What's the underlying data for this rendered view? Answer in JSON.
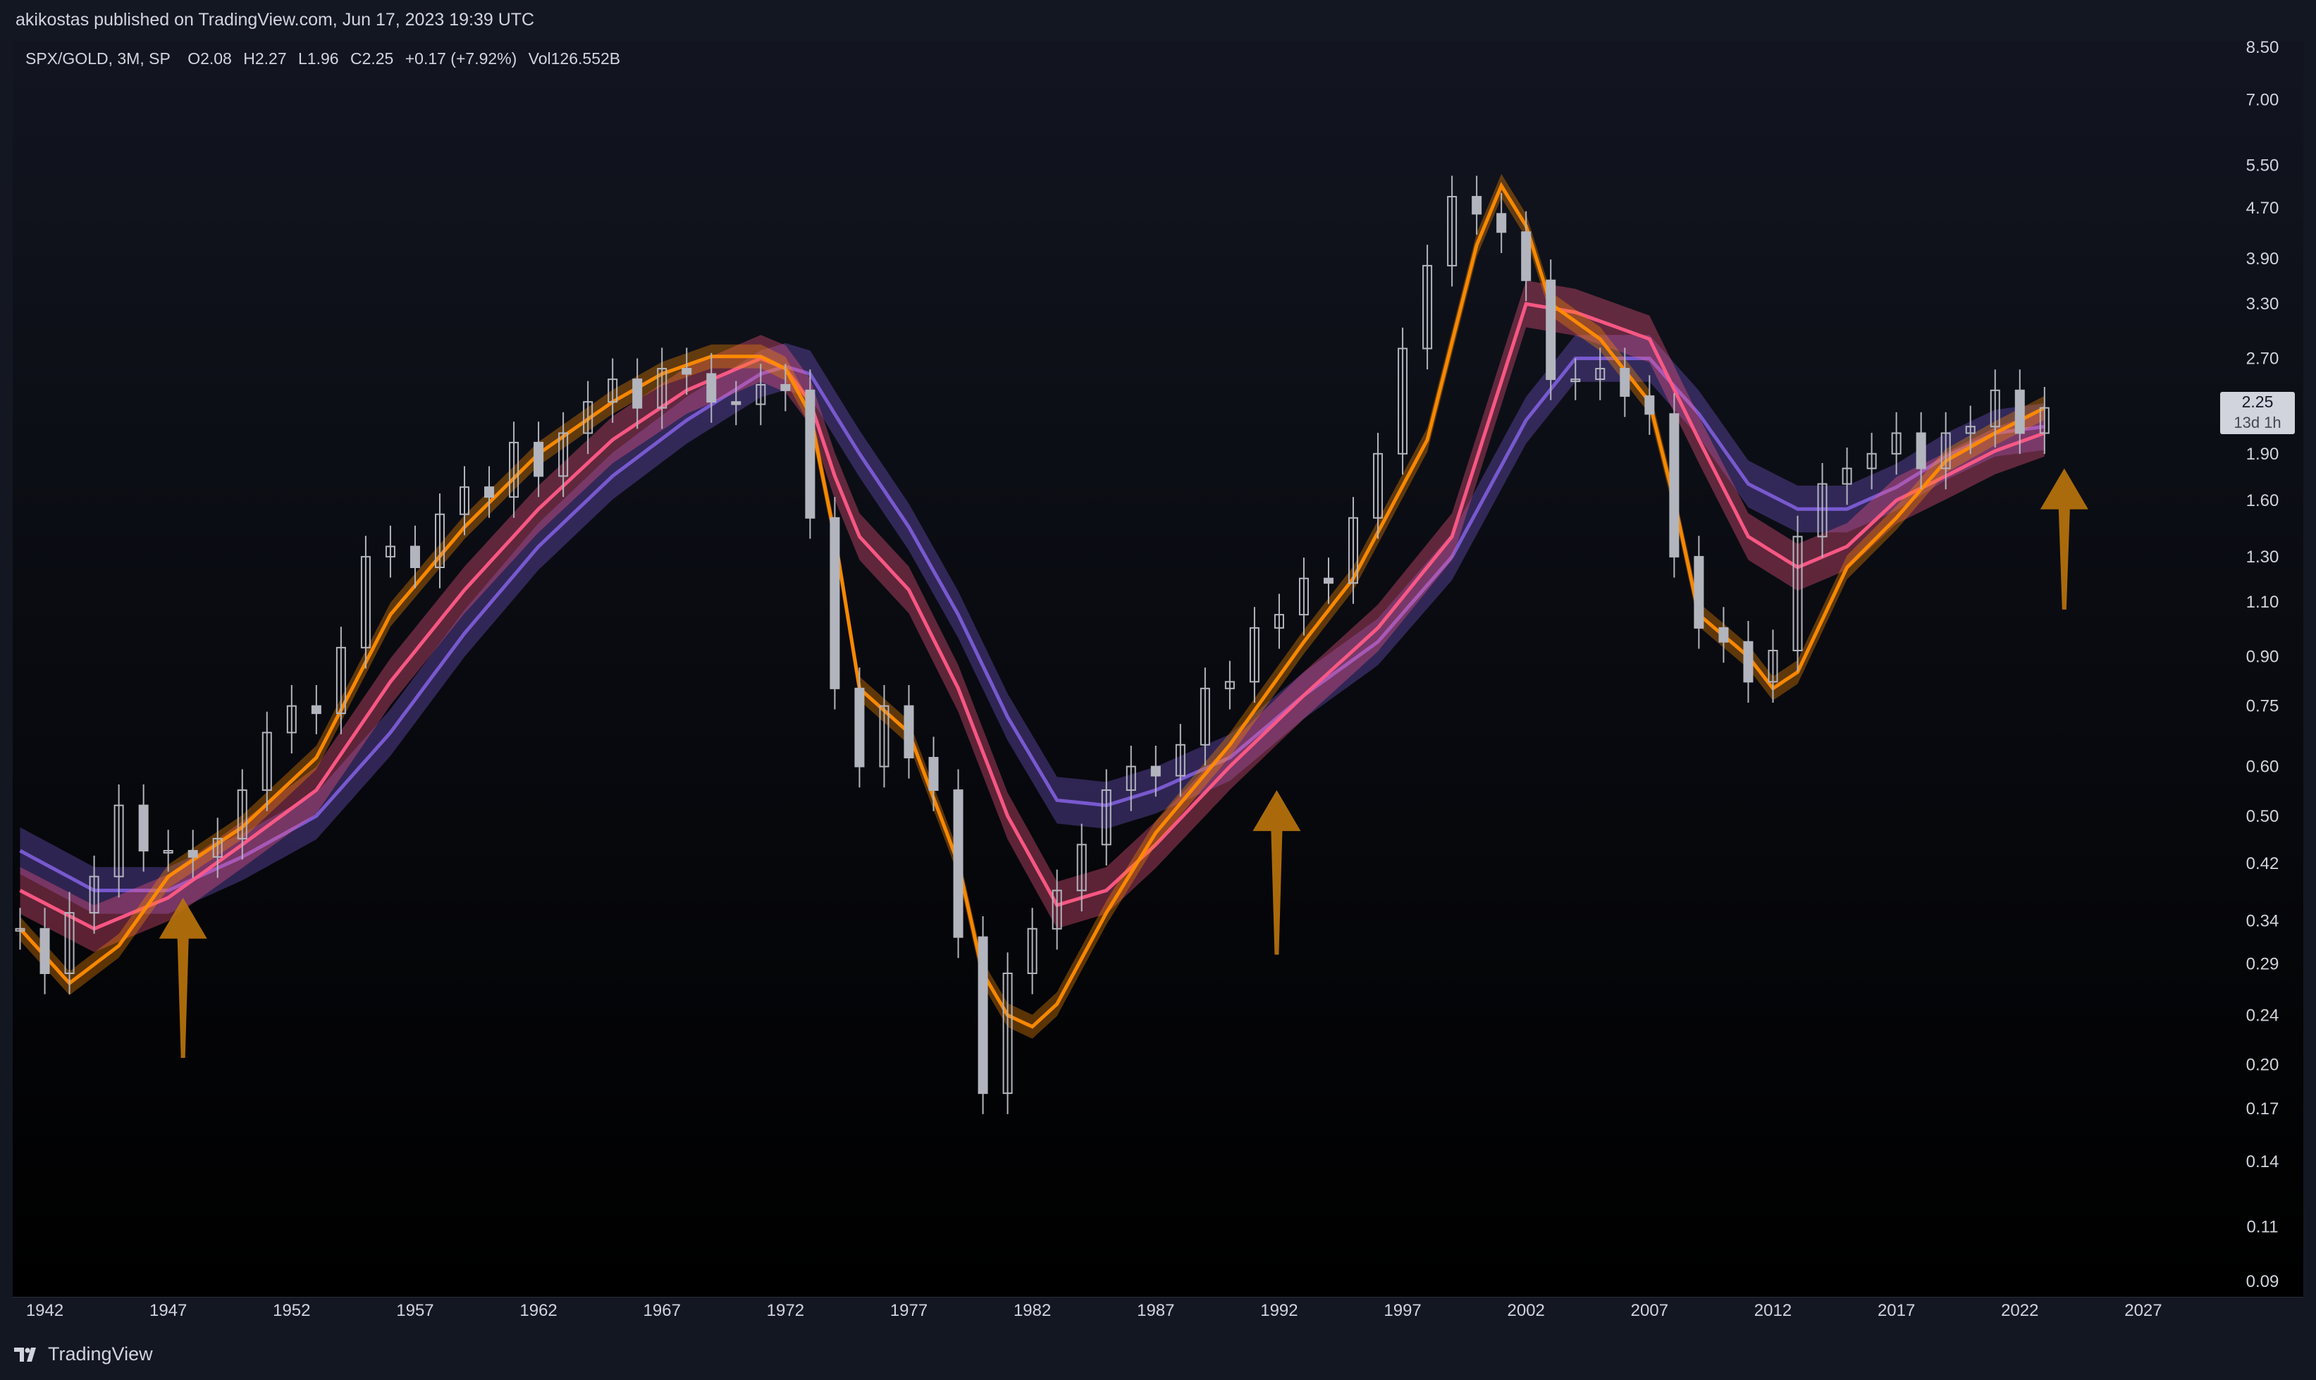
{
  "header": {
    "publish_line": "akikostas published on TradingView.com, Jun 17, 2023 19:39 UTC"
  },
  "legend": {
    "symbol": "SPX/GOLD, 3M, SP",
    "open": "O2.08",
    "high": "H2.27",
    "low": "L1.96",
    "close": "C2.25",
    "change": "+0.17 (+7.92%)",
    "volume": "Vol126.552B"
  },
  "price_tag": {
    "value": "2.25",
    "countdown": "13d 1h"
  },
  "footer": {
    "brand": "TradingView"
  },
  "colors": {
    "background": "#131722",
    "candle": "#b2b5be",
    "fast_band": "#ff8c00",
    "mid_band": "#ff5a87",
    "slow_band": "#7c5cd6",
    "arrow": "#b8730c"
  },
  "chart_data": {
    "type": "line",
    "title": "",
    "xlabel": "",
    "ylabel": "",
    "y_scale": "log",
    "ylim": [
      0.085,
      8.7
    ],
    "xlim": [
      1940.7,
      2030.0
    ],
    "x_ticks": [
      "1942",
      "1947",
      "1952",
      "1957",
      "1962",
      "1967",
      "1972",
      "1977",
      "1982",
      "1987",
      "1992",
      "1997",
      "2002",
      "2007",
      "2012",
      "2017",
      "2022",
      "2027"
    ],
    "y_ticks": [
      "8.50",
      "7.00",
      "5.50",
      "4.70",
      "3.90",
      "3.30",
      "2.70",
      "1.90",
      "1.60",
      "1.30",
      "1.10",
      "0.90",
      "0.75",
      "0.60",
      "0.50",
      "0.42",
      "0.34",
      "0.29",
      "0.24",
      "0.20",
      "0.17",
      "0.14",
      "0.11",
      "0.09"
    ],
    "grid": false,
    "series": [
      {
        "kind": "candles",
        "x": [
          1941,
          1942,
          1943,
          1944,
          1945,
          1946,
          1947,
          1948,
          1949,
          1950,
          1951,
          1952,
          1953,
          1954,
          1955,
          1956,
          1957,
          1958,
          1959,
          1960,
          1961,
          1962,
          1963,
          1964,
          1965,
          1966,
          1967,
          1968,
          1969,
          1970,
          1971,
          1972,
          1973,
          1974,
          1975,
          1976,
          1977,
          1978,
          1979,
          1980,
          1981,
          1982,
          1983,
          1984,
          1985,
          1986,
          1987,
          1988,
          1989,
          1990,
          1991,
          1992,
          1993,
          1994,
          1995,
          1996,
          1997,
          1998,
          1999,
          2000,
          2001,
          2002,
          2003,
          2004,
          2005,
          2006,
          2007,
          2008,
          2009,
          2010,
          2011,
          2012,
          2013,
          2014,
          2015,
          2016,
          2017,
          2018,
          2019,
          2020,
          2021,
          2022,
          2023
        ],
        "values": [
          0.33,
          0.28,
          0.35,
          0.4,
          0.52,
          0.44,
          0.44,
          0.43,
          0.46,
          0.55,
          0.68,
          0.75,
          0.73,
          0.93,
          1.3,
          1.35,
          1.25,
          1.52,
          1.68,
          1.62,
          1.98,
          1.75,
          2.05,
          2.3,
          2.5,
          2.25,
          2.6,
          2.55,
          2.3,
          2.28,
          2.45,
          2.4,
          1.5,
          0.8,
          0.6,
          0.75,
          0.62,
          0.55,
          0.32,
          0.18,
          0.28,
          0.33,
          0.38,
          0.45,
          0.55,
          0.6,
          0.58,
          0.65,
          0.8,
          0.82,
          1.0,
          1.05,
          1.2,
          1.18,
          1.5,
          1.9,
          2.8,
          3.8,
          4.9,
          4.6,
          4.3,
          3.6,
          2.5,
          2.5,
          2.6,
          2.35,
          2.2,
          1.3,
          1.0,
          0.95,
          0.82,
          0.92,
          1.4,
          1.7,
          1.8,
          1.9,
          2.05,
          1.8,
          2.05,
          2.1,
          2.4,
          2.05,
          2.25
        ],
        "unit": "SPX/GOLD ratio"
      },
      {
        "kind": "ma_fast",
        "x": [
          1941,
          1943,
          1945,
          1947,
          1950,
          1953,
          1956,
          1959,
          1962,
          1965,
          1967,
          1969,
          1971,
          1972,
          1973,
          1974,
          1975,
          1977,
          1979,
          1980,
          1981,
          1982,
          1983,
          1985,
          1987,
          1990,
          1993,
          1995,
          1998,
          2000,
          2001,
          2002,
          2003,
          2005,
          2007,
          2008,
          2009,
          2011,
          2012,
          2013,
          2015,
          2017,
          2019,
          2021,
          2023
        ],
        "values": [
          0.33,
          0.27,
          0.31,
          0.4,
          0.48,
          0.62,
          1.05,
          1.45,
          1.9,
          2.3,
          2.55,
          2.72,
          2.72,
          2.6,
          2.2,
          1.4,
          0.8,
          0.68,
          0.42,
          0.28,
          0.24,
          0.23,
          0.25,
          0.35,
          0.47,
          0.65,
          0.95,
          1.2,
          2.0,
          4.1,
          5.1,
          4.4,
          3.3,
          2.9,
          2.3,
          1.6,
          1.05,
          0.9,
          0.8,
          0.85,
          1.25,
          1.5,
          1.85,
          2.05,
          2.25
        ]
      },
      {
        "kind": "ma_mid",
        "x": [
          1941,
          1944,
          1947,
          1950,
          1953,
          1956,
          1959,
          1962,
          1965,
          1968,
          1971,
          1972,
          1973,
          1974,
          1975,
          1977,
          1979,
          1981,
          1983,
          1985,
          1987,
          1990,
          1993,
          1996,
          1999,
          2002,
          2004,
          2007,
          2009,
          2011,
          2013,
          2015,
          2017,
          2019,
          2021,
          2023
        ],
        "values": [
          0.38,
          0.33,
          0.37,
          0.45,
          0.55,
          0.82,
          1.15,
          1.55,
          2.0,
          2.4,
          2.7,
          2.6,
          2.3,
          1.75,
          1.4,
          1.15,
          0.8,
          0.5,
          0.36,
          0.38,
          0.45,
          0.6,
          0.78,
          1.0,
          1.4,
          3.3,
          3.2,
          2.9,
          2.0,
          1.4,
          1.25,
          1.35,
          1.6,
          1.75,
          1.92,
          2.05
        ]
      },
      {
        "kind": "ma_slow",
        "x": [
          1941,
          1944,
          1947,
          1950,
          1953,
          1956,
          1959,
          1962,
          1965,
          1968,
          1971,
          1972,
          1973,
          1974,
          1975,
          1977,
          1979,
          1981,
          1983,
          1985,
          1987,
          1990,
          1993,
          1996,
          1999,
          2002,
          2004,
          2007,
          2009,
          2011,
          2013,
          2015,
          2017,
          2019,
          2021,
          2023
        ],
        "values": [
          0.44,
          0.38,
          0.38,
          0.43,
          0.5,
          0.68,
          0.98,
          1.35,
          1.75,
          2.15,
          2.55,
          2.62,
          2.55,
          2.2,
          1.9,
          1.45,
          1.05,
          0.72,
          0.53,
          0.52,
          0.55,
          0.62,
          0.78,
          0.95,
          1.3,
          2.15,
          2.7,
          2.7,
          2.2,
          1.7,
          1.55,
          1.55,
          1.68,
          1.88,
          2.05,
          2.1
        ]
      }
    ],
    "annotations": [
      {
        "kind": "up-arrow",
        "x": 1947.6,
        "tip": 0.37,
        "base": 0.205
      },
      {
        "kind": "up-arrow",
        "x": 1991.9,
        "tip": 0.55,
        "base": 0.3
      },
      {
        "kind": "up-arrow",
        "x": 2023.8,
        "tip": 1.8,
        "base": 1.07
      }
    ]
  }
}
